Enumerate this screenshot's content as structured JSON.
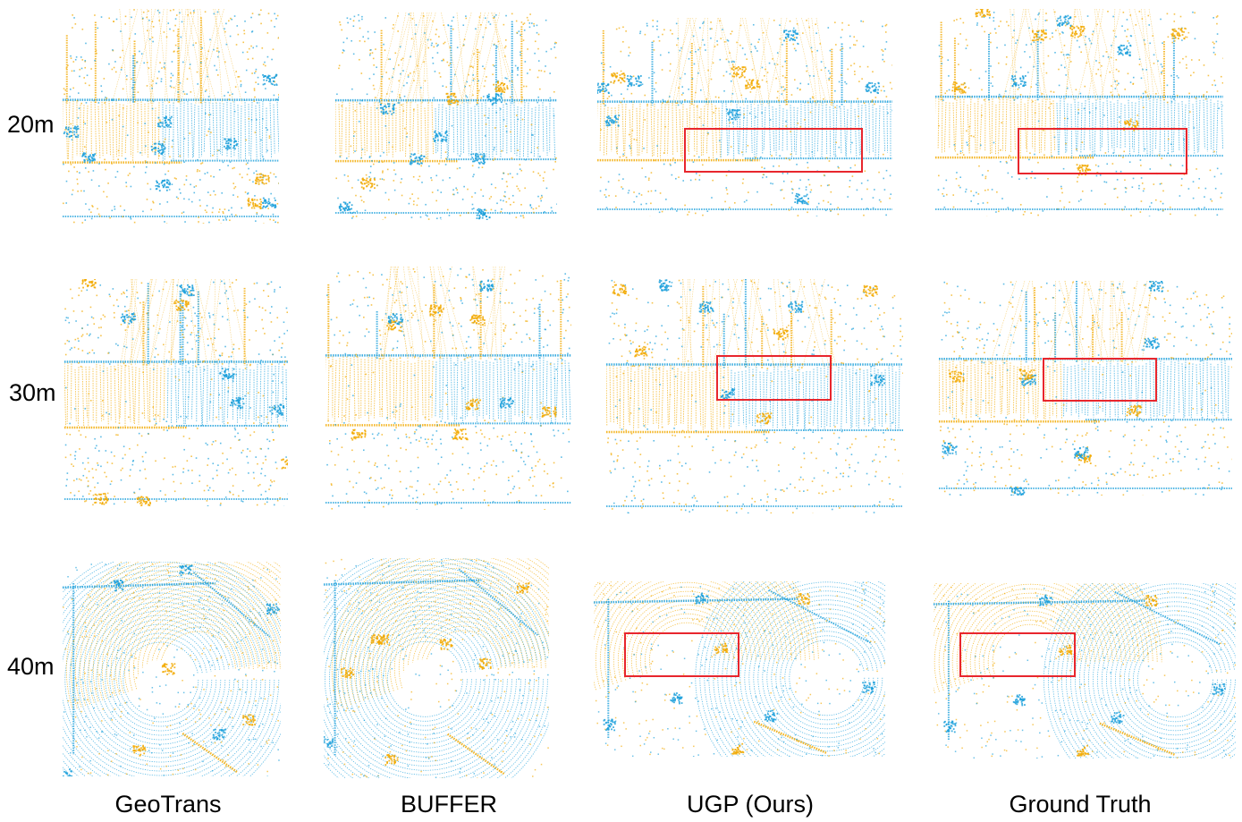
{
  "rows": [
    {
      "label": "20m",
      "key": "r20"
    },
    {
      "label": "30m",
      "key": "r30"
    },
    {
      "label": "40m",
      "key": "r40"
    }
  ],
  "columns": [
    {
      "label": "GeoTrans",
      "key": "geotrans"
    },
    {
      "label": "BUFFER",
      "key": "buffer"
    },
    {
      "label": "UGP (Ours)",
      "key": "ugp"
    },
    {
      "label": "Ground Truth",
      "key": "gt"
    }
  ],
  "colors": {
    "source_cloud": "#f2a900",
    "target_cloud": "#1a9fdb",
    "highlight_box": "#e8262d"
  }
}
